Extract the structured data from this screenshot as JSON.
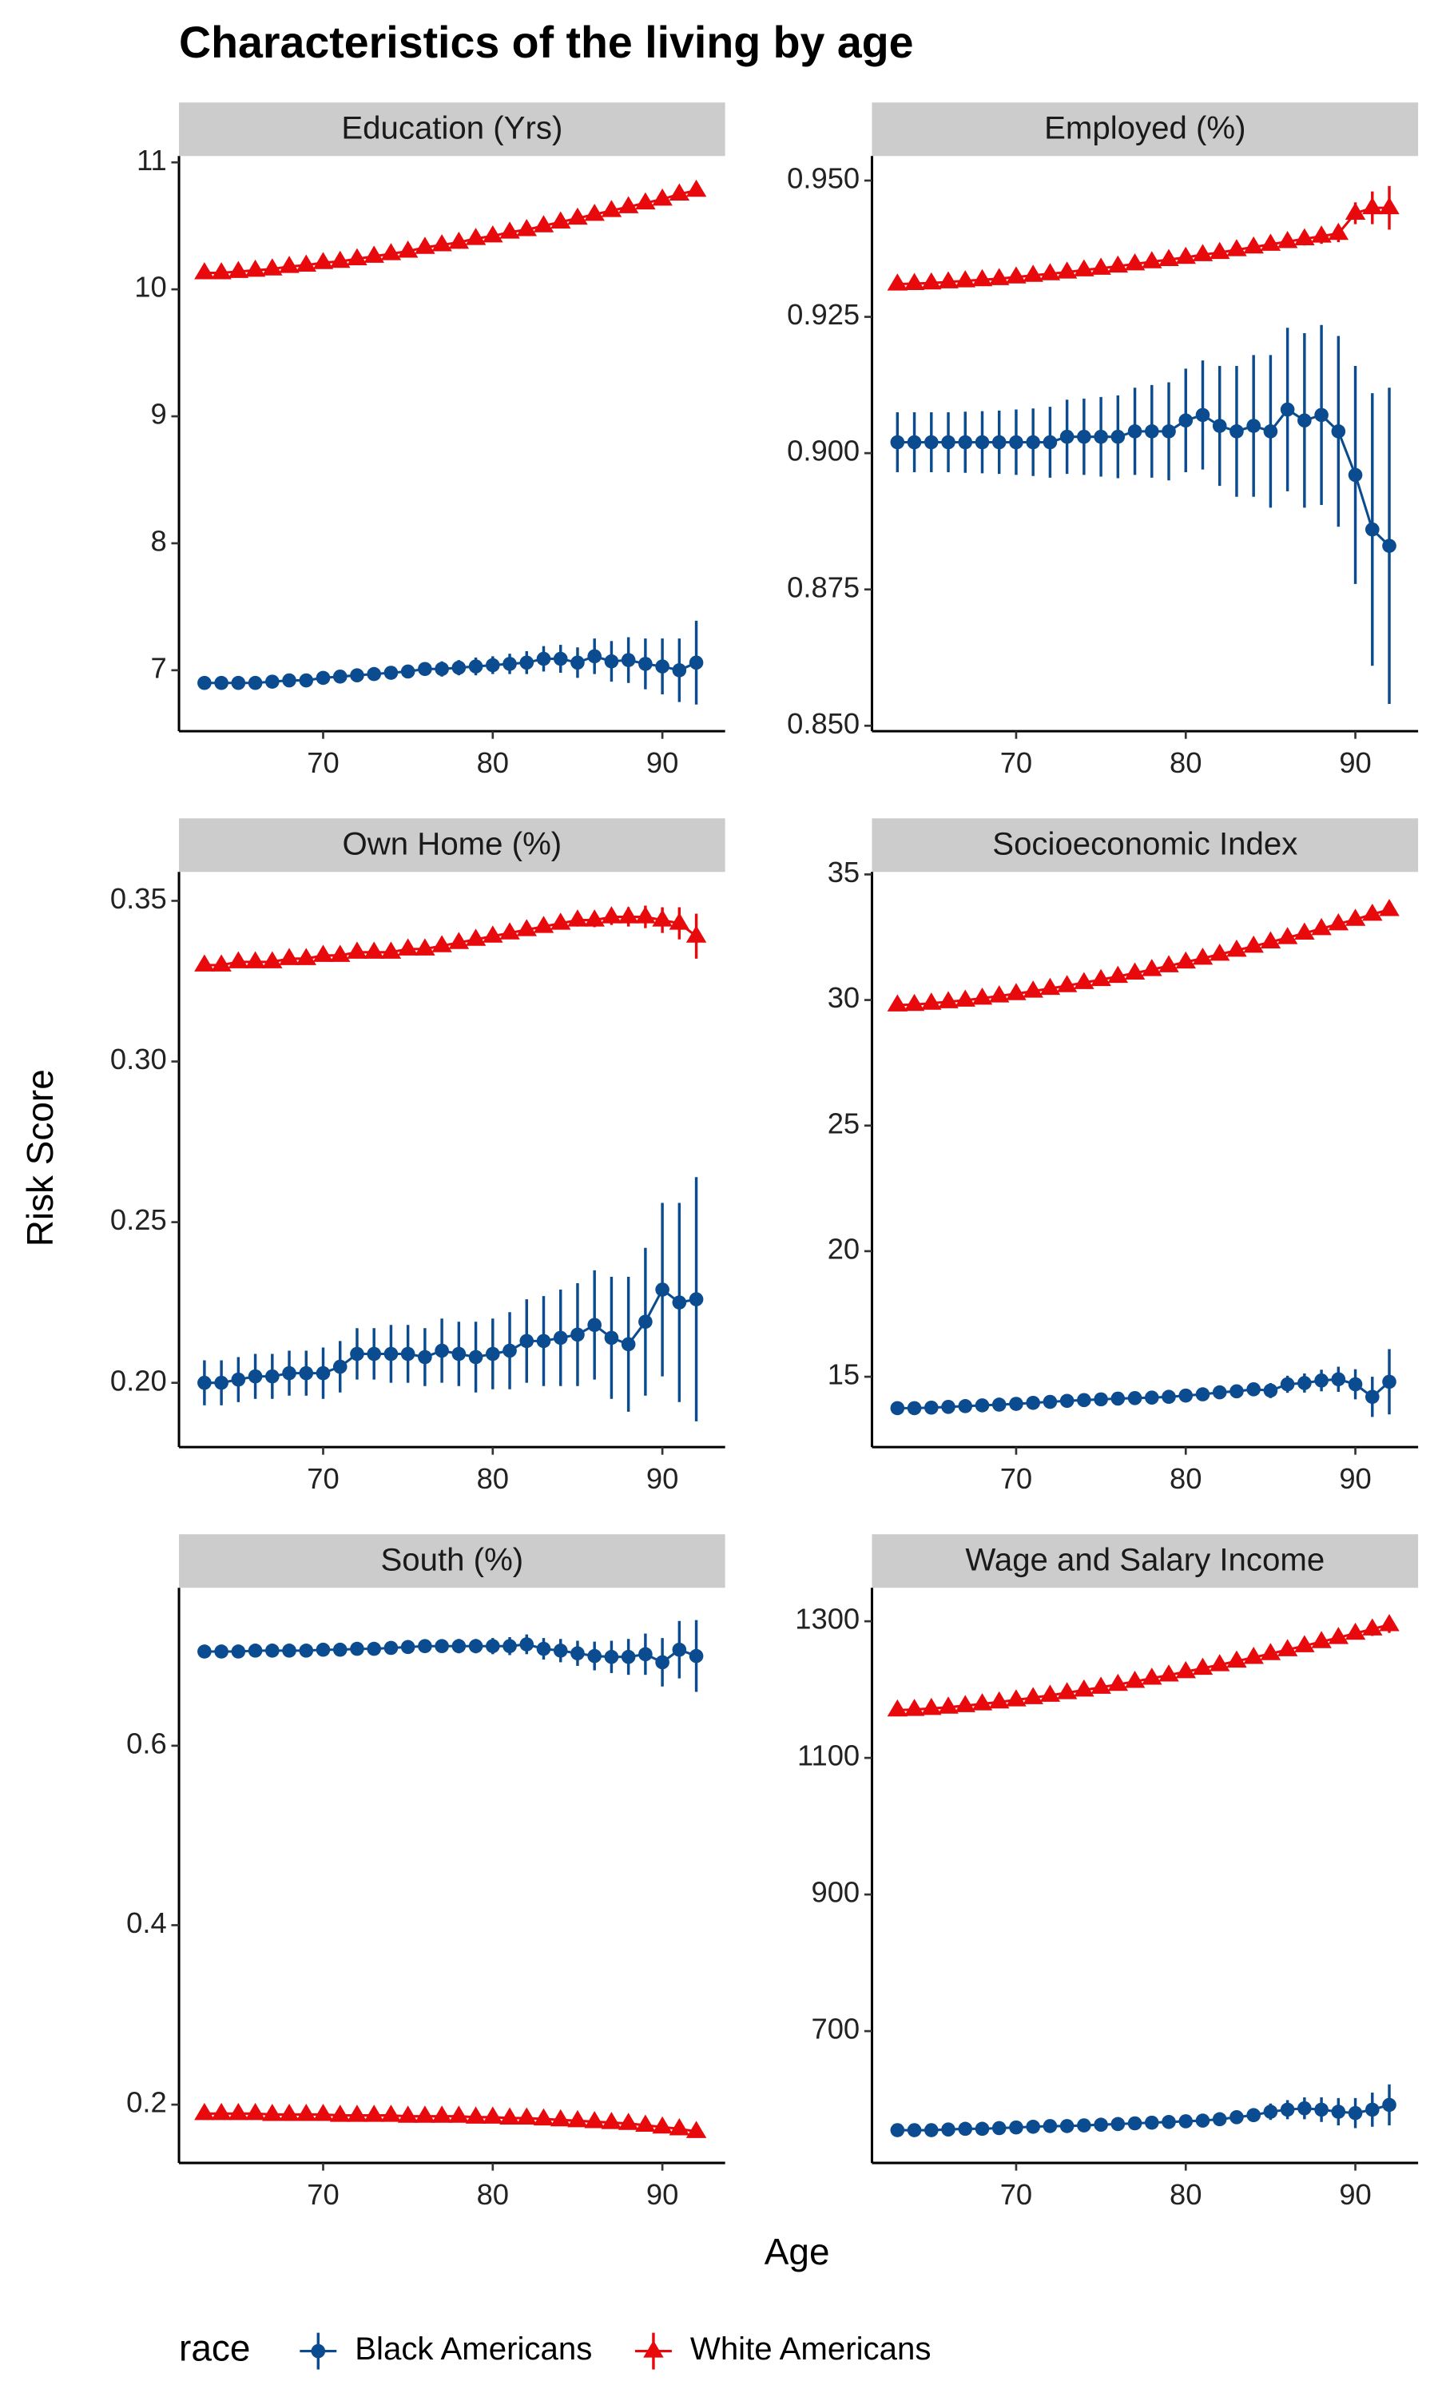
{
  "chart_data": {
    "type": "facet",
    "title": "Characteristics of the living by age",
    "xlabel": "Age",
    "ylabel": "Risk Score",
    "x": [
      63,
      64,
      65,
      66,
      67,
      68,
      69,
      70,
      71,
      72,
      73,
      74,
      75,
      76,
      77,
      78,
      79,
      80,
      81,
      82,
      83,
      84,
      85,
      86,
      87,
      88,
      89,
      90,
      91,
      92
    ],
    "xlim": [
      61.5,
      93.7
    ],
    "xticks": [
      70,
      80,
      90
    ],
    "legend": {
      "title": "race",
      "position": "bottom",
      "entries": [
        {
          "name": "Black Americans",
          "color": "#0b4b8f",
          "marker": "circle"
        },
        {
          "name": "White Americans",
          "color": "#e8090c",
          "marker": "triangle"
        }
      ]
    },
    "panels": [
      {
        "type": "errorbar-line",
        "title": "Education (Yrs)",
        "ylim": [
          6.52,
          11.05
        ],
        "yticks": [
          7,
          8,
          9,
          10,
          11
        ],
        "series": [
          {
            "values": [
              6.9,
              6.9,
              6.9,
              6.9,
              6.91,
              6.92,
              6.92,
              6.94,
              6.95,
              6.96,
              6.97,
              6.98,
              6.99,
              7.01,
              7.01,
              7.02,
              7.03,
              7.04,
              7.05,
              7.06,
              7.09,
              7.09,
              7.06,
              7.11,
              7.07,
              7.08,
              7.05,
              7.03,
              7.0,
              7.06
            ],
            "errors": [
              0.02,
              0.02,
              0.02,
              0.02,
              0.02,
              0.03,
              0.03,
              0.03,
              0.03,
              0.04,
              0.04,
              0.04,
              0.05,
              0.05,
              0.06,
              0.06,
              0.07,
              0.07,
              0.08,
              0.09,
              0.1,
              0.11,
              0.12,
              0.14,
              0.16,
              0.18,
              0.2,
              0.22,
              0.25,
              0.33
            ]
          },
          {
            "values": [
              10.13,
              10.13,
              10.14,
              10.15,
              10.16,
              10.18,
              10.19,
              10.21,
              10.22,
              10.24,
              10.26,
              10.28,
              10.3,
              10.33,
              10.35,
              10.37,
              10.4,
              10.42,
              10.45,
              10.47,
              10.5,
              10.53,
              10.56,
              10.59,
              10.62,
              10.65,
              10.68,
              10.71,
              10.75,
              10.78
            ],
            "errors": [
              0.01,
              0.01,
              0.01,
              0.01,
              0.01,
              0.01,
              0.01,
              0.01,
              0.01,
              0.01,
              0.01,
              0.01,
              0.01,
              0.01,
              0.01,
              0.01,
              0.01,
              0.01,
              0.01,
              0.01,
              0.01,
              0.01,
              0.01,
              0.01,
              0.01,
              0.01,
              0.01,
              0.01,
              0.01,
              0.02
            ]
          }
        ]
      },
      {
        "type": "errorbar-line",
        "title": "Employed (%)",
        "ylim": [
          0.849,
          0.9545
        ],
        "yticks": [
          {
            "value": 0.85,
            "label": "0.850"
          },
          {
            "value": 0.875,
            "label": "0.875"
          },
          {
            "value": 0.9,
            "label": "0.900"
          },
          {
            "value": 0.925,
            "label": "0.925"
          },
          {
            "value": 0.95,
            "label": "0.950"
          }
        ],
        "series": [
          {
            "values": [
              0.902,
              0.902,
              0.902,
              0.902,
              0.902,
              0.902,
              0.902,
              0.902,
              0.902,
              0.902,
              0.903,
              0.903,
              0.903,
              0.903,
              0.904,
              0.904,
              0.904,
              0.906,
              0.907,
              0.905,
              0.904,
              0.905,
              0.904,
              0.908,
              0.906,
              0.907,
              0.904,
              0.896,
              0.886,
              0.883
            ],
            "errors": [
              0.0055,
              0.0055,
              0.0055,
              0.0055,
              0.0056,
              0.0057,
              0.0058,
              0.006,
              0.0062,
              0.0065,
              0.0068,
              0.007,
              0.0073,
              0.0076,
              0.008,
              0.0085,
              0.009,
              0.0095,
              0.01,
              0.011,
              0.012,
              0.013,
              0.014,
              0.015,
              0.016,
              0.0165,
              0.0175,
              0.02,
              0.025,
              0.029
            ]
          },
          {
            "values": [
              0.931,
              0.9311,
              0.9312,
              0.9314,
              0.9316,
              0.9318,
              0.932,
              0.9323,
              0.9326,
              0.9329,
              0.9332,
              0.9336,
              0.9339,
              0.9343,
              0.9347,
              0.9351,
              0.9355,
              0.9359,
              0.9364,
              0.9368,
              0.9373,
              0.9378,
              0.9383,
              0.9388,
              0.9393,
              0.9398,
              0.9403,
              0.944,
              0.945,
              0.945
            ],
            "errors": [
              0.0005,
              0.0005,
              0.0005,
              0.0005,
              0.0005,
              0.0005,
              0.0005,
              0.0005,
              0.0005,
              0.0005,
              0.0005,
              0.0005,
              0.0005,
              0.0005,
              0.0005,
              0.0006,
              0.0006,
              0.0007,
              0.0007,
              0.0008,
              0.0008,
              0.0009,
              0.001,
              0.0011,
              0.0012,
              0.0014,
              0.0016,
              0.002,
              0.003,
              0.004
            ]
          }
        ]
      },
      {
        "type": "errorbar-line",
        "title": "Own Home (%)",
        "ylim": [
          0.18,
          0.359
        ],
        "yticks": [
          {
            "value": 0.2,
            "label": "0.20"
          },
          {
            "value": 0.25,
            "label": "0.25"
          },
          {
            "value": 0.3,
            "label": "0.30"
          },
          {
            "value": 0.35,
            "label": "0.35"
          }
        ],
        "series": [
          {
            "values": [
              0.2,
              0.2,
              0.201,
              0.202,
              0.202,
              0.203,
              0.203,
              0.203,
              0.205,
              0.209,
              0.209,
              0.209,
              0.209,
              0.208,
              0.21,
              0.209,
              0.208,
              0.209,
              0.21,
              0.213,
              0.213,
              0.214,
              0.215,
              0.218,
              0.214,
              0.212,
              0.219,
              0.229,
              0.225,
              0.226
            ],
            "errors": [
              0.007,
              0.007,
              0.007,
              0.007,
              0.007,
              0.007,
              0.007,
              0.008,
              0.008,
              0.008,
              0.008,
              0.009,
              0.009,
              0.009,
              0.01,
              0.01,
              0.011,
              0.011,
              0.012,
              0.013,
              0.014,
              0.015,
              0.016,
              0.017,
              0.019,
              0.021,
              0.023,
              0.027,
              0.031,
              0.038
            ]
          },
          {
            "values": [
              0.33,
              0.33,
              0.331,
              0.331,
              0.331,
              0.332,
              0.332,
              0.333,
              0.333,
              0.334,
              0.334,
              0.334,
              0.335,
              0.335,
              0.336,
              0.337,
              0.338,
              0.339,
              0.34,
              0.341,
              0.342,
              0.343,
              0.344,
              0.344,
              0.345,
              0.345,
              0.345,
              0.344,
              0.343,
              0.339
            ],
            "errors": [
              0.001,
              0.001,
              0.001,
              0.001,
              0.001,
              0.001,
              0.001,
              0.001,
              0.001,
              0.001,
              0.001,
              0.001,
              0.001,
              0.001,
              0.001,
              0.001,
              0.001,
              0.001,
              0.0012,
              0.0013,
              0.0015,
              0.0017,
              0.002,
              0.0022,
              0.0025,
              0.003,
              0.0035,
              0.004,
              0.005,
              0.007
            ]
          }
        ]
      },
      {
        "type": "errorbar-line",
        "title": "Socioeconomic Index",
        "ylim": [
          12.2,
          35.1
        ],
        "yticks": [
          15,
          20,
          25,
          30,
          35
        ],
        "series": [
          {
            "values": [
              13.75,
              13.75,
              13.77,
              13.8,
              13.83,
              13.86,
              13.89,
              13.92,
              13.96,
              14.0,
              14.04,
              14.07,
              14.1,
              14.13,
              14.15,
              14.17,
              14.2,
              14.25,
              14.3,
              14.38,
              14.42,
              14.5,
              14.45,
              14.7,
              14.75,
              14.85,
              14.9,
              14.7,
              14.2,
              14.8
            ],
            "errors": [
              0.1,
              0.1,
              0.1,
              0.1,
              0.1,
              0.1,
              0.11,
              0.11,
              0.12,
              0.12,
              0.13,
              0.13,
              0.14,
              0.15,
              0.15,
              0.16,
              0.17,
              0.18,
              0.2,
              0.22,
              0.24,
              0.27,
              0.3,
              0.34,
              0.38,
              0.43,
              0.5,
              0.6,
              0.8,
              1.3
            ]
          },
          {
            "values": [
              29.8,
              29.82,
              29.87,
              29.93,
              29.99,
              30.07,
              30.16,
              30.25,
              30.35,
              30.46,
              30.57,
              30.69,
              30.81,
              30.94,
              31.07,
              31.21,
              31.36,
              31.51,
              31.66,
              31.82,
              31.98,
              32.14,
              32.31,
              32.48,
              32.66,
              32.84,
              33.03,
              33.21,
              33.41,
              33.6
            ],
            "errors": [
              0.05,
              0.05,
              0.05,
              0.05,
              0.05,
              0.05,
              0.05,
              0.05,
              0.05,
              0.05,
              0.05,
              0.05,
              0.06,
              0.06,
              0.06,
              0.06,
              0.07,
              0.07,
              0.07,
              0.08,
              0.08,
              0.09,
              0.09,
              0.1,
              0.11,
              0.12,
              0.13,
              0.15,
              0.17,
              0.2
            ]
          }
        ]
      },
      {
        "type": "errorbar-line",
        "title": "South (%)",
        "ylim": [
          0.135,
          0.776
        ],
        "yticks": [
          0.2,
          0.4,
          0.6
        ],
        "series": [
          {
            "values": [
              0.705,
              0.705,
              0.705,
              0.706,
              0.706,
              0.706,
              0.706,
              0.707,
              0.707,
              0.708,
              0.708,
              0.709,
              0.71,
              0.711,
              0.711,
              0.711,
              0.711,
              0.711,
              0.711,
              0.713,
              0.708,
              0.706,
              0.703,
              0.7,
              0.699,
              0.699,
              0.702,
              0.693,
              0.707,
              0.7
            ],
            "errors": [
              0.004,
              0.004,
              0.004,
              0.004,
              0.004,
              0.004,
              0.005,
              0.005,
              0.005,
              0.005,
              0.006,
              0.006,
              0.006,
              0.007,
              0.007,
              0.008,
              0.008,
              0.009,
              0.01,
              0.011,
              0.012,
              0.013,
              0.014,
              0.016,
              0.018,
              0.02,
              0.023,
              0.027,
              0.032,
              0.04
            ]
          },
          {
            "values": [
              0.19,
              0.19,
              0.19,
              0.19,
              0.189,
              0.189,
              0.189,
              0.189,
              0.188,
              0.188,
              0.188,
              0.188,
              0.187,
              0.187,
              0.187,
              0.187,
              0.186,
              0.186,
              0.185,
              0.185,
              0.184,
              0.183,
              0.182,
              0.181,
              0.18,
              0.179,
              0.177,
              0.175,
              0.173,
              0.17
            ],
            "errors": [
              0.001,
              0.001,
              0.001,
              0.001,
              0.001,
              0.001,
              0.001,
              0.001,
              0.001,
              0.001,
              0.001,
              0.001,
              0.001,
              0.001,
              0.001,
              0.001,
              0.001,
              0.001,
              0.001,
              0.001,
              0.001,
              0.001,
              0.001,
              0.001,
              0.001,
              0.001,
              0.001,
              0.0015,
              0.002,
              0.002
            ]
          }
        ]
      },
      {
        "type": "errorbar-line",
        "title": "Wage and Salary Income",
        "ylim": [
          507,
          1349
        ],
        "yticks": [
          700,
          900,
          1100,
          1300
        ],
        "series": [
          {
            "values": [
              555,
              555,
              555,
              556,
              557,
              557,
              558,
              559,
              560,
              561,
              561,
              562,
              563,
              564,
              565,
              566,
              567,
              568,
              569,
              571,
              574,
              577,
              582,
              585,
              587,
              585,
              582,
              580,
              585,
              592
            ],
            "errors": [
              3,
              3,
              3,
              3,
              3,
              3,
              3,
              4,
              4,
              4,
              4,
              4,
              5,
              5,
              5,
              5,
              6,
              6,
              7,
              8,
              9,
              10,
              12,
              14,
              16,
              18,
              20,
              22,
              25,
              30
            ]
          },
          {
            "values": [
              1170.0,
              1170.8,
              1172.3,
              1174.2,
              1176.4,
              1179.0,
              1181.8,
              1184.8,
              1188.1,
              1191.6,
              1195.3,
              1199.2,
              1203.3,
              1207.5,
              1211.9,
              1216.5,
              1221.2,
              1226.1,
              1231.1,
              1236.3,
              1241.6,
              1247.0,
              1252.6,
              1258.3,
              1264.1,
              1270.1,
              1276.1,
              1282.3,
              1288.6,
              1295.0
            ],
            "errors": [
              3,
              3,
              3,
              3,
              3,
              3,
              3,
              3,
              3,
              3,
              3,
              3,
              3,
              3,
              4,
              4,
              4,
              4,
              4,
              5,
              5,
              5,
              6,
              6,
              6,
              7,
              7,
              8,
              10,
              12
            ]
          }
        ]
      }
    ]
  }
}
